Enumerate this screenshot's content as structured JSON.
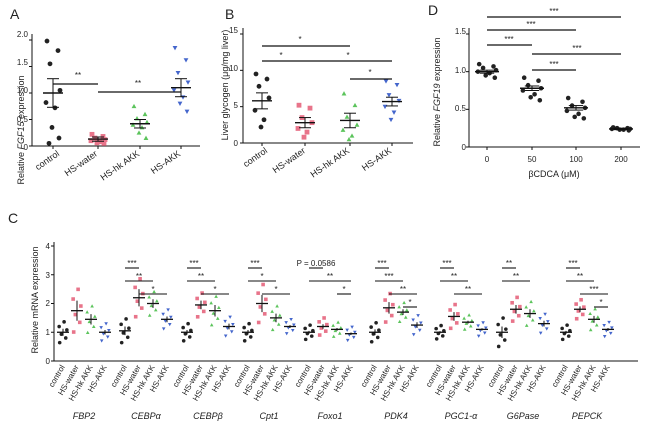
{
  "panels": [
    {
      "letter": "A",
      "ylabel_pre": "Relative ",
      "ylabel_gene": "FGF15",
      "ylabel_post": " expression",
      "yticks": [
        "0",
        "0.5",
        "1.0",
        "1.5",
        "2.0"
      ],
      "groups": [
        "control",
        "HS-water",
        "HS-hk AKK",
        "HS-AKK"
      ],
      "sig": [
        "**",
        "**"
      ]
    },
    {
      "letter": "B",
      "ylabel": "Liver glycogen (μg/mg liver)",
      "yticks": [
        "0",
        "5",
        "10",
        "15"
      ],
      "groups": [
        "control",
        "HS-water",
        "HS-hk AKK",
        "HS-AKK"
      ],
      "sig": [
        "*",
        "*",
        "*",
        "*"
      ]
    },
    {
      "letter": "D",
      "ylabel_pre": "Relative ",
      "ylabel_gene": "FGF19",
      "ylabel_post": " expression",
      "yticks": [
        "0",
        "0.5",
        "1.0",
        "1.5"
      ],
      "xticks": [
        "0",
        "50",
        "100",
        "200"
      ],
      "xlabel": "βCDCA (μM)",
      "sig": [
        "***",
        "***",
        "***",
        "***",
        "***"
      ]
    },
    {
      "letter": "C",
      "ylabel": "Relative mRNA expression",
      "yticks": [
        "0",
        "1",
        "2",
        "3",
        "4"
      ],
      "groups": [
        "control",
        "HS-water",
        "HS-hk AKK",
        "HS-AKK"
      ],
      "genes": [
        "FBP2",
        "CEBPα",
        "CEBPβ",
        "Cpt1",
        "Foxo1",
        "PDK4",
        "PGC1-α",
        "G6Pase",
        "PEPCK"
      ],
      "p_label": "P = 0.0586"
    }
  ],
  "colors": {
    "control": "#222222",
    "HS-water": "#e8748a",
    "HS-hk AKK": "#5cc45c",
    "HS-AKK": "#4466cc",
    "beta": "#222222"
  },
  "chart_data": [
    {
      "type": "scatter",
      "panel": "A",
      "ylabel": "Relative FGF15 expression",
      "categories": [
        "control",
        "HS-water",
        "HS-hk AKK",
        "HS-AKK"
      ],
      "ylim": [
        0,
        2.0
      ],
      "means": [
        1.0,
        0.13,
        0.42,
        1.1
      ],
      "sems": [
        0.27,
        0.04,
        0.08,
        0.17
      ],
      "points": [
        [
          1.98,
          1.8,
          1.55,
          1.05,
          0.82,
          0.72,
          0.35,
          0.15,
          0.05
        ],
        [
          0.22,
          0.18,
          0.15,
          0.12,
          0.1,
          0.08,
          0.06,
          0.05
        ],
        [
          0.75,
          0.6,
          0.52,
          0.45,
          0.4,
          0.35,
          0.25,
          0.15
        ],
        [
          1.85,
          1.62,
          1.38,
          1.2,
          1.05,
          0.92,
          0.8,
          0.65
        ]
      ],
      "significance": [
        {
          "from": "control",
          "to": "HS-water",
          "label": "**"
        },
        {
          "from": "HS-water",
          "to": "HS-AKK",
          "label": "**"
        }
      ]
    },
    {
      "type": "scatter",
      "panel": "B",
      "ylabel": "Liver glycogen (μg/mg liver)",
      "categories": [
        "control",
        "HS-water",
        "HS-hk AKK",
        "HS-AKK"
      ],
      "ylim": [
        0,
        15
      ],
      "means": [
        5.8,
        2.8,
        3.1,
        5.7
      ],
      "sems": [
        1.1,
        0.7,
        1.0,
        0.6
      ],
      "points": [
        [
          9.5,
          8.8,
          7.8,
          6.2,
          4.5,
          3.2,
          2.2
        ],
        [
          5.2,
          4.8,
          3.5,
          2.8,
          2.0,
          1.5,
          0.8
        ],
        [
          6.8,
          5.2,
          3.6,
          2.5,
          1.8,
          1.0,
          0.5
        ],
        [
          8.5,
          8.0,
          6.6,
          5.8,
          5.0,
          4.2,
          3.2
        ]
      ],
      "significance": [
        {
          "from": "control",
          "to": "HS-hk AKK",
          "label": "*"
        },
        {
          "from": "control",
          "to": "HS-water",
          "label": "*"
        },
        {
          "from": "HS-water",
          "to": "HS-AKK",
          "label": "*"
        },
        {
          "from": "HS-hk AKK",
          "to": "HS-AKK",
          "label": "*"
        }
      ]
    },
    {
      "type": "scatter",
      "panel": "D",
      "ylabel": "Relative FGF19 expression",
      "xlabel": "βCDCA (μM)",
      "categories": [
        "0",
        "50",
        "100",
        "200"
      ],
      "ylim": [
        0,
        1.5
      ],
      "means": [
        1.0,
        0.78,
        0.52,
        0.24
      ],
      "sems": [
        0.02,
        0.03,
        0.03,
        0.01
      ],
      "points": [
        [
          1.1,
          1.07,
          1.05,
          1.02,
          1.0,
          0.98,
          0.95,
          0.92
        ],
        [
          0.92,
          0.88,
          0.82,
          0.78,
          0.75,
          0.7,
          0.66,
          0.62
        ],
        [
          0.65,
          0.6,
          0.55,
          0.52,
          0.48,
          0.44,
          0.4,
          0.38
        ],
        [
          0.26,
          0.25,
          0.25,
          0.24,
          0.24,
          0.23,
          0.23,
          0.22
        ]
      ],
      "significance": [
        {
          "from": "0",
          "to": "50",
          "label": "***"
        },
        {
          "from": "0",
          "to": "100",
          "label": "***"
        },
        {
          "from": "0",
          "to": "200",
          "label": "***"
        },
        {
          "from": "50",
          "to": "100",
          "label": "***"
        },
        {
          "from": "50",
          "to": "200",
          "label": "***"
        }
      ]
    },
    {
      "type": "scatter",
      "panel": "C",
      "ylabel": "Relative mRNA expression",
      "categories": [
        "control",
        "HS-water",
        "HS-hk AKK",
        "HS-AKK"
      ],
      "ylim": [
        0,
        4
      ],
      "genes": [
        {
          "name": "FBP2",
          "means": [
            1.0,
            1.75,
            1.45,
            1.0
          ],
          "sems": [
            0.12,
            0.35,
            0.18,
            0.08
          ],
          "sig": []
        },
        {
          "name": "CEBPα",
          "means": [
            1.05,
            2.2,
            2.0,
            1.45
          ],
          "sems": [
            0.15,
            0.3,
            0.15,
            0.1
          ],
          "sig": [
            [
              "control",
              "HS-water",
              "***"
            ],
            [
              "control",
              "HS-hk AKK",
              "**"
            ],
            [
              "HS-water",
              "HS-AKK",
              "*"
            ]
          ]
        },
        {
          "name": "CEBPβ",
          "means": [
            1.0,
            1.95,
            1.75,
            1.2
          ],
          "sems": [
            0.08,
            0.15,
            0.2,
            0.1
          ],
          "sig": [
            [
              "control",
              "HS-water",
              "***"
            ],
            [
              "control",
              "HS-hk AKK",
              "**"
            ],
            [
              "HS-water",
              "HS-AKK",
              "*"
            ]
          ]
        },
        {
          "name": "Cpt1",
          "means": [
            1.0,
            2.0,
            1.5,
            1.2
          ],
          "sems": [
            0.08,
            0.3,
            0.15,
            0.05
          ],
          "sig": [
            [
              "control",
              "HS-water",
              "***"
            ],
            [
              "control",
              "HS-hk AKK",
              "*"
            ],
            [
              "HS-water",
              "HS-AKK",
              "*"
            ]
          ]
        },
        {
          "name": "Foxo1",
          "means": [
            1.0,
            1.2,
            1.1,
            0.95
          ],
          "sems": [
            0.05,
            0.08,
            0.05,
            0.04
          ],
          "sig": [
            [
              "control",
              "HS-water",
              "P = 0.0586"
            ],
            [
              "control",
              "HS-AKK",
              "**"
            ],
            [
              "HS-hk AKK",
              "HS-AKK",
              "*"
            ]
          ]
        },
        {
          "name": "PDK4",
          "means": [
            1.0,
            1.85,
            1.7,
            1.25
          ],
          "sems": [
            0.1,
            0.2,
            0.1,
            0.1
          ],
          "sig": [
            [
              "control",
              "HS-water",
              "***"
            ],
            [
              "control",
              "HS-hk AKK",
              "***"
            ],
            [
              "HS-water",
              "HS-AKK",
              "**"
            ],
            [
              "HS-hk AKK",
              "HS-AKK",
              "*"
            ]
          ]
        },
        {
          "name": "PGC1-α",
          "means": [
            1.0,
            1.55,
            1.35,
            1.1
          ],
          "sems": [
            0.04,
            0.15,
            0.05,
            0.04
          ],
          "sig": [
            [
              "control",
              "HS-water",
              "***"
            ],
            [
              "control",
              "HS-hk AKK",
              "**"
            ],
            [
              "HS-water",
              "HS-AKK",
              "**"
            ]
          ]
        },
        {
          "name": "G6Pase",
          "means": [
            1.0,
            1.8,
            1.65,
            1.3
          ],
          "sems": [
            0.2,
            0.15,
            0.15,
            0.1
          ],
          "sig": [
            [
              "control",
              "HS-water",
              "**"
            ],
            [
              "control",
              "HS-hk AKK",
              "**"
            ]
          ]
        },
        {
          "name": "PEPCK",
          "means": [
            1.0,
            1.8,
            1.45,
            1.1
          ],
          "sems": [
            0.05,
            0.1,
            0.12,
            0.05
          ],
          "sig": [
            [
              "control",
              "HS-water",
              "***"
            ],
            [
              "control",
              "HS-hk AKK",
              "**"
            ],
            [
              "HS-water",
              "HS-AKK",
              "***"
            ],
            [
              "HS-hk AKK",
              "HS-AKK",
              "*"
            ]
          ]
        }
      ]
    }
  ]
}
